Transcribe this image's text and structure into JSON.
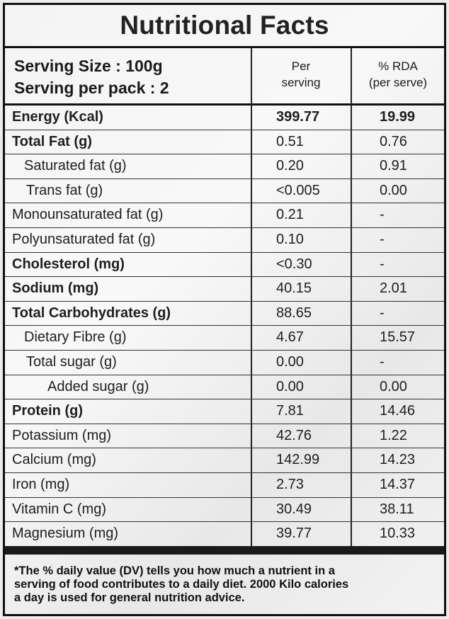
{
  "title": "Nutritional Facts",
  "header": {
    "serving_size": "Serving Size : 100g",
    "serving_per_pack": "Serving per pack : 2",
    "col_per_line1": "Per",
    "col_per_line2": "serving",
    "col_rda_line1": "% RDA",
    "col_rda_line2": "(per serve)"
  },
  "rows": [
    {
      "name": "Energy (Kcal)",
      "per": "399.77",
      "rda": "19.99"
    },
    {
      "name": "Total Fat (g)",
      "per": "0.51",
      "rda": "0.76"
    },
    {
      "name": "Saturated fat (g)",
      "per": "0.20",
      "rda": "0.91"
    },
    {
      "name": "Trans fat (g)",
      "per": "<0.005",
      "rda": "0.00"
    },
    {
      "name": "Monounsaturated fat (g)",
      "per": "0.21",
      "rda": "-"
    },
    {
      "name": "Polyunsaturated fat (g)",
      "per": "0.10",
      "rda": "-"
    },
    {
      "name": "Cholesterol (mg)",
      "per": "<0.30",
      "rda": "-"
    },
    {
      "name": "Sodium (mg)",
      "per": "40.15",
      "rda": "2.01"
    },
    {
      "name": "Total Carbohydrates (g)",
      "per": "88.65",
      "rda": "-"
    },
    {
      "name": "Dietary Fibre (g)",
      "per": "4.67",
      "rda": "15.57"
    },
    {
      "name": "Total sugar (g)",
      "per": "0.00",
      "rda": "-"
    },
    {
      "name": "Added sugar (g)",
      "per": "0.00",
      "rda": "0.00"
    },
    {
      "name": "Protein (g)",
      "per": "7.81",
      "rda": "14.46"
    },
    {
      "name": "Potassium (mg)",
      "per": "42.76",
      "rda": "1.22"
    },
    {
      "name": "Calcium (mg)",
      "per": "142.99",
      "rda": "14.23"
    },
    {
      "name": "Iron (mg)",
      "per": "2.73",
      "rda": "14.37"
    },
    {
      "name": "Vitamin C (mg)",
      "per": "30.49",
      "rda": "38.11"
    },
    {
      "name": "Magnesium (mg)",
      "per": "39.77",
      "rda": "10.33"
    }
  ],
  "footnote": {
    "line1": "*The % daily value (DV) tells you how much a nutrient in a",
    "line2": "serving of food contributes to a daily diet. 2000 Kilo calories",
    "line3": "a day is used for general nutrition advice."
  }
}
